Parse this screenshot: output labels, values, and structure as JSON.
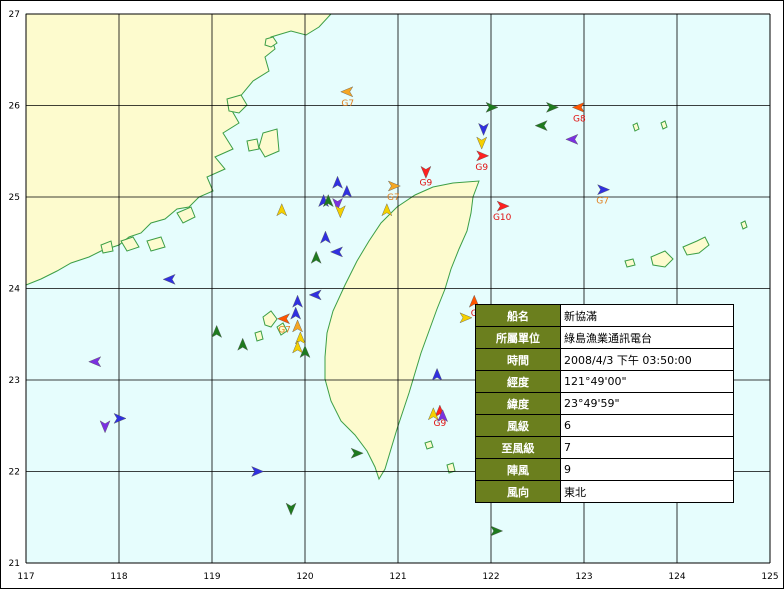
{
  "map": {
    "x_ticks": [
      "117",
      "118",
      "119",
      "120",
      "121",
      "122",
      "123",
      "124",
      "125"
    ],
    "y_ticks": [
      "27",
      "26",
      "25",
      "24",
      "23",
      "22",
      "21"
    ],
    "lon_range": [
      117,
      125
    ],
    "lat_range": [
      21,
      27
    ],
    "colors": {
      "sea": "#e6fdfd",
      "land": "#fdfbce",
      "coast": "#3c9e46",
      "grid": "#000000"
    }
  },
  "vessels": [
    {
      "lon": 120.46,
      "lat": 26.15,
      "heading": "left",
      "color": "#f5a623",
      "label": "G7",
      "label_color": "#e08020"
    },
    {
      "lon": 122.0,
      "lat": 25.98,
      "heading": "right",
      "color": "#1e7a1e",
      "label": "",
      "label_color": ""
    },
    {
      "lon": 122.65,
      "lat": 25.98,
      "heading": "right",
      "color": "#1e7a1e",
      "label": "",
      "label_color": ""
    },
    {
      "lon": 122.55,
      "lat": 25.78,
      "heading": "left",
      "color": "#1e7a1e",
      "label": "",
      "label_color": ""
    },
    {
      "lon": 122.95,
      "lat": 25.98,
      "heading": "left",
      "color": "#ff5500",
      "label": "G8",
      "label_color": "#e01010"
    },
    {
      "lon": 121.92,
      "lat": 25.75,
      "heading": "down",
      "color": "#3030e0",
      "label": "",
      "label_color": ""
    },
    {
      "lon": 121.9,
      "lat": 25.6,
      "heading": "down",
      "color": "#f5d000",
      "label": "",
      "label_color": ""
    },
    {
      "lon": 121.9,
      "lat": 25.45,
      "heading": "right",
      "color": "#ff2020",
      "label": "G9",
      "label_color": "#e01010"
    },
    {
      "lon": 122.88,
      "lat": 25.63,
      "heading": "left",
      "color": "#7a30e0",
      "label": "",
      "label_color": ""
    },
    {
      "lon": 121.3,
      "lat": 25.28,
      "heading": "down",
      "color": "#ff2020",
      "label": "G9",
      "label_color": "#e01010"
    },
    {
      "lon": 120.95,
      "lat": 25.12,
      "heading": "right",
      "color": "#f5a623",
      "label": "G7",
      "label_color": "#e08020"
    },
    {
      "lon": 122.12,
      "lat": 24.9,
      "heading": "right",
      "color": "#ff2020",
      "label": "G10",
      "label_color": "#e01010"
    },
    {
      "lon": 123.2,
      "lat": 25.08,
      "heading": "right",
      "color": "#3030e0",
      "label": "G7",
      "label_color": "#e08020"
    },
    {
      "lon": 120.35,
      "lat": 25.15,
      "heading": "up",
      "color": "#3030e0",
      "label": "",
      "label_color": ""
    },
    {
      "lon": 120.45,
      "lat": 25.05,
      "heading": "up",
      "color": "#3030e0",
      "label": "",
      "label_color": ""
    },
    {
      "lon": 120.2,
      "lat": 24.95,
      "heading": "up",
      "color": "#3030e0",
      "label": "",
      "label_color": ""
    },
    {
      "lon": 120.25,
      "lat": 24.95,
      "heading": "up",
      "color": "#1e7a1e",
      "label": "",
      "label_color": ""
    },
    {
      "lon": 120.35,
      "lat": 24.93,
      "heading": "down",
      "color": "#7a30e0",
      "label": "",
      "label_color": ""
    },
    {
      "lon": 120.38,
      "lat": 24.85,
      "heading": "down",
      "color": "#f5d000",
      "label": "",
      "label_color": ""
    },
    {
      "lon": 120.88,
      "lat": 24.85,
      "heading": "up",
      "color": "#f5d000",
      "label": "",
      "label_color": ""
    },
    {
      "lon": 119.75,
      "lat": 24.85,
      "heading": "up",
      "color": "#f5d000",
      "label": "",
      "label_color": ""
    },
    {
      "lon": 120.22,
      "lat": 24.55,
      "heading": "up",
      "color": "#3030e0",
      "label": "",
      "label_color": ""
    },
    {
      "lon": 120.35,
      "lat": 24.4,
      "heading": "left",
      "color": "#3030e0",
      "label": "",
      "label_color": ""
    },
    {
      "lon": 120.12,
      "lat": 24.33,
      "heading": "up",
      "color": "#1e7a1e",
      "label": "",
      "label_color": ""
    },
    {
      "lon": 118.55,
      "lat": 24.1,
      "heading": "left",
      "color": "#3030e0",
      "label": "",
      "label_color": ""
    },
    {
      "lon": 120.12,
      "lat": 23.93,
      "heading": "left",
      "color": "#3030e0",
      "label": "",
      "label_color": ""
    },
    {
      "lon": 119.92,
      "lat": 23.85,
      "heading": "up",
      "color": "#3030e0",
      "label": "",
      "label_color": ""
    },
    {
      "lon": 119.9,
      "lat": 23.72,
      "heading": "up",
      "color": "#3030e0",
      "label": "",
      "label_color": ""
    },
    {
      "lon": 119.78,
      "lat": 23.67,
      "heading": "left",
      "color": "#ff5500",
      "label": "G7",
      "label_color": "#e08020"
    },
    {
      "lon": 119.92,
      "lat": 23.58,
      "heading": "up",
      "color": "#f5a623",
      "label": "",
      "label_color": ""
    },
    {
      "lon": 119.95,
      "lat": 23.45,
      "heading": "up",
      "color": "#f5d000",
      "label": "",
      "label_color": ""
    },
    {
      "lon": 119.92,
      "lat": 23.35,
      "heading": "up",
      "color": "#f5d000",
      "label": "",
      "label_color": ""
    },
    {
      "lon": 120.0,
      "lat": 23.3,
      "heading": "up",
      "color": "#1e7a1e",
      "label": "",
      "label_color": ""
    },
    {
      "lon": 119.05,
      "lat": 23.52,
      "heading": "up",
      "color": "#1e7a1e",
      "label": "",
      "label_color": ""
    },
    {
      "lon": 119.33,
      "lat": 23.38,
      "heading": "up",
      "color": "#1e7a1e",
      "label": "",
      "label_color": ""
    },
    {
      "lon": 117.75,
      "lat": 23.2,
      "heading": "left",
      "color": "#7a30e0",
      "label": "",
      "label_color": ""
    },
    {
      "lon": 121.42,
      "lat": 23.05,
      "heading": "up",
      "color": "#3030e0",
      "label": "",
      "label_color": ""
    },
    {
      "lon": 121.82,
      "lat": 23.85,
      "heading": "up",
      "color": "#ff5500",
      "label": "G",
      "label_color": "#e01010"
    },
    {
      "lon": 121.72,
      "lat": 23.68,
      "heading": "right",
      "color": "#f5d000",
      "label": "",
      "label_color": ""
    },
    {
      "lon": 121.45,
      "lat": 22.65,
      "heading": "up",
      "color": "#ff2020",
      "label": "G9",
      "label_color": "#e01010"
    },
    {
      "lon": 121.38,
      "lat": 22.62,
      "heading": "up",
      "color": "#f5d000",
      "label": "",
      "label_color": ""
    },
    {
      "lon": 121.48,
      "lat": 22.6,
      "heading": "up",
      "color": "#7a30e0",
      "label": "",
      "label_color": ""
    },
    {
      "lon": 118.0,
      "lat": 22.58,
      "heading": "right",
      "color": "#3030e0",
      "label": "",
      "label_color": ""
    },
    {
      "lon": 117.85,
      "lat": 22.5,
      "heading": "down",
      "color": "#7a30e0",
      "label": "",
      "label_color": ""
    },
    {
      "lon": 120.55,
      "lat": 22.2,
      "heading": "right",
      "color": "#1e7a1e",
      "label": "",
      "label_color": ""
    },
    {
      "lon": 119.48,
      "lat": 22.0,
      "heading": "right",
      "color": "#3030e0",
      "label": "",
      "label_color": ""
    },
    {
      "lon": 119.85,
      "lat": 21.6,
      "heading": "down",
      "color": "#1e7a1e",
      "label": "",
      "label_color": ""
    },
    {
      "lon": 122.05,
      "lat": 21.35,
      "heading": "right",
      "color": "#1e7a1e",
      "label": "",
      "label_color": ""
    }
  ],
  "info_panel": {
    "rows": [
      {
        "key": "船名",
        "value": "新協滿"
      },
      {
        "key": "所屬單位",
        "value": "綠島漁業通訊電台"
      },
      {
        "key": "時間",
        "value": "2008/4/3 下午 03:50:00"
      },
      {
        "key": "經度",
        "value": "121°49'00\""
      },
      {
        "key": "緯度",
        "value": "23°49'59\""
      },
      {
        "key": "風級",
        "value": "6"
      },
      {
        "key": "至風級",
        "value": "7"
      },
      {
        "key": "陣風",
        "value": "9"
      },
      {
        "key": "風向",
        "value": "東北"
      }
    ]
  }
}
